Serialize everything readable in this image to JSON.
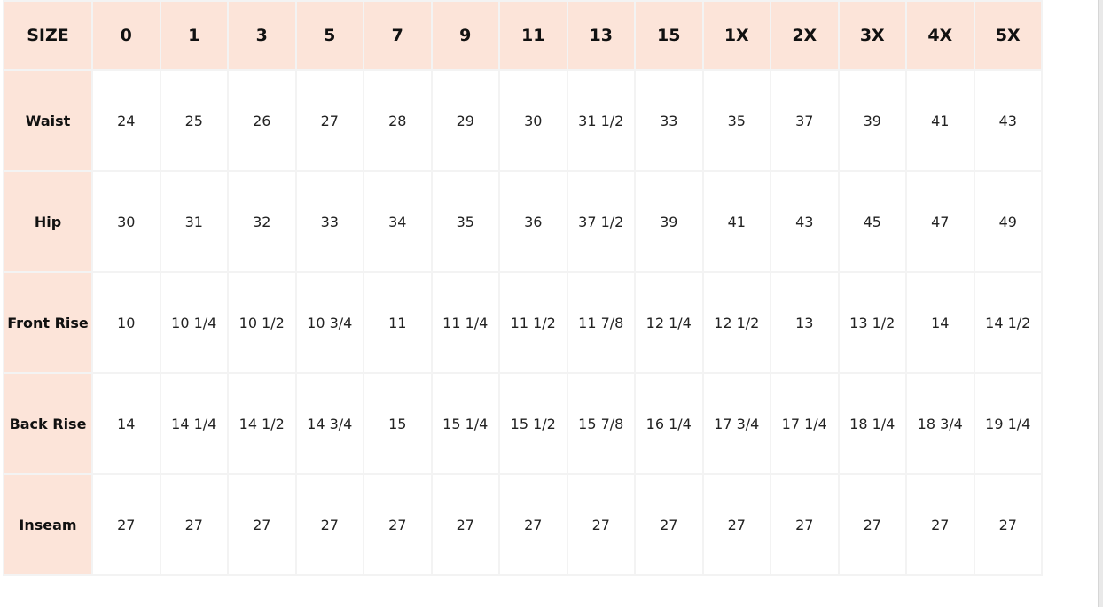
{
  "header": {
    "label": "SIZE",
    "sizes": [
      "0",
      "1",
      "3",
      "5",
      "7",
      "9",
      "11",
      "13",
      "15",
      "1X",
      "2X",
      "3X",
      "4X",
      "5X"
    ]
  },
  "rows": [
    {
      "label": "Waist",
      "values": [
        "24",
        "25",
        "26",
        "27",
        "28",
        "29",
        "30",
        "31 1/2",
        "33",
        "35",
        "37",
        "39",
        "41",
        "43"
      ]
    },
    {
      "label": "Hip",
      "values": [
        "30",
        "31",
        "32",
        "33",
        "34",
        "35",
        "36",
        "37 1/2",
        "39",
        "41",
        "43",
        "45",
        "47",
        "49"
      ]
    },
    {
      "label": "Front Rise",
      "values": [
        "10",
        "10 1/4",
        "10 1/2",
        "10 3/4",
        "11",
        "11 1/4",
        "11 1/2",
        "11 7/8",
        "12 1/4",
        "12 1/2",
        "13",
        "13 1/2",
        "14",
        "14 1/2"
      ]
    },
    {
      "label": "Back Rise",
      "values": [
        "14",
        "14 1/4",
        "14 1/2",
        "14 3/4",
        "15",
        "15 1/4",
        "15 1/2",
        "15 7/8",
        "16 1/4",
        "17 3/4",
        "17 1/4",
        "18 1/4",
        "18 3/4",
        "19 1/4"
      ]
    },
    {
      "label": "Inseam",
      "values": [
        "27",
        "27",
        "27",
        "27",
        "27",
        "27",
        "27",
        "27",
        "27",
        "27",
        "27",
        "27",
        "27",
        "27"
      ]
    }
  ],
  "colors": {
    "header_bg": "#fce4d9",
    "cell_bg": "#ffffff",
    "border": "#f3f3f3"
  }
}
